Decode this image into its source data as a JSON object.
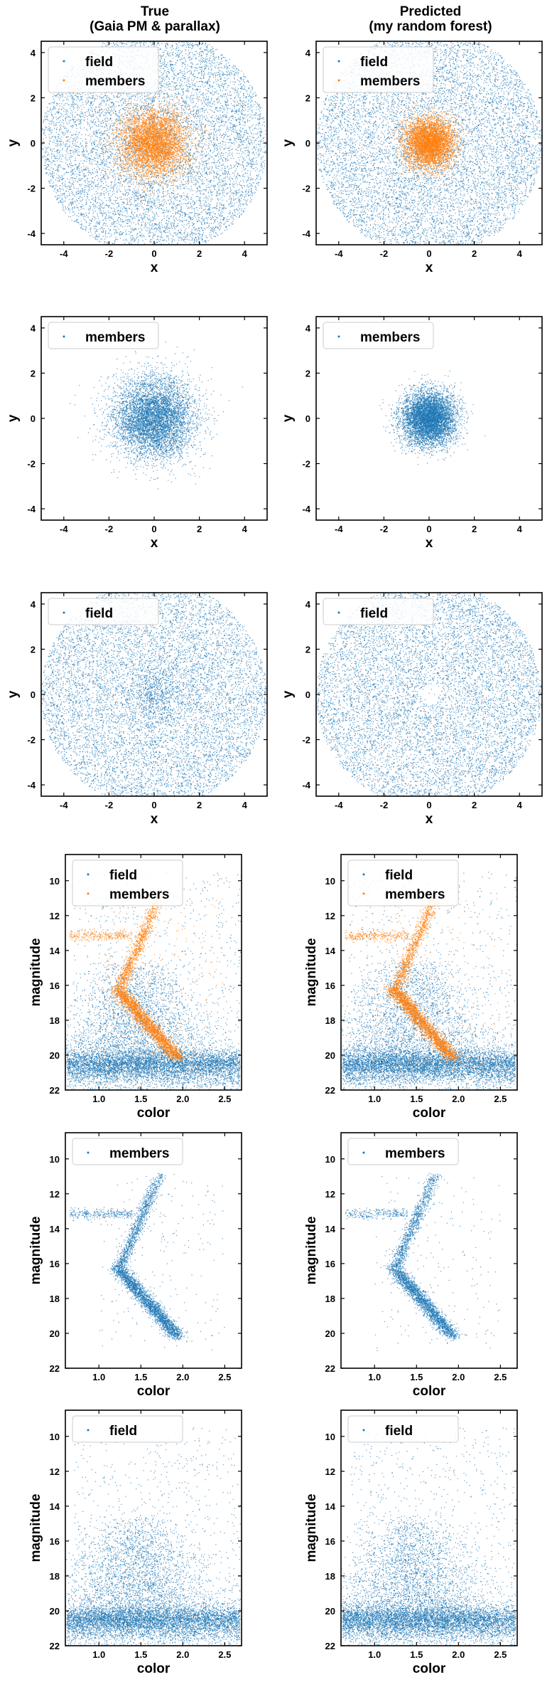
{
  "figure": {
    "column_titles": [
      [
        "True",
        "(Gaia PM & parallax)"
      ],
      [
        "Predicted",
        "(my random forest)"
      ]
    ]
  },
  "colors": {
    "field": "#1f77b4",
    "members": "#ff7f0e"
  },
  "chart_data": [
    {
      "id": "r1c1",
      "type": "scatter",
      "xlabel": "x",
      "ylabel": "y",
      "xlim": [
        -5,
        5
      ],
      "ylim": [
        -4.5,
        4.5
      ],
      "xticks": [
        -4,
        -2,
        0,
        2,
        4
      ],
      "yticks": [
        -4,
        -2,
        0,
        2,
        4
      ],
      "legend": {
        "position": "upper-left",
        "entries": [
          "field",
          "members"
        ]
      },
      "series": [
        {
          "name": "field",
          "color": "#1f77b4",
          "distribution": "uniform-disk",
          "center": [
            0,
            0
          ],
          "radius": 5.0,
          "count": 9000
        },
        {
          "name": "members",
          "color": "#ff7f0e",
          "distribution": "gaussian",
          "center": [
            0,
            0
          ],
          "sigma": 0.75,
          "count": 5000
        }
      ]
    },
    {
      "id": "r1c2",
      "type": "scatter",
      "xlabel": "x",
      "ylabel": "y",
      "xlim": [
        -5,
        5
      ],
      "ylim": [
        -4.5,
        4.5
      ],
      "xticks": [
        -4,
        -2,
        0,
        2,
        4
      ],
      "yticks": [
        -4,
        -2,
        0,
        2,
        4
      ],
      "legend": {
        "position": "upper-left",
        "entries": [
          "field",
          "members"
        ]
      },
      "series": [
        {
          "name": "field",
          "color": "#1f77b4",
          "distribution": "uniform-disk",
          "center": [
            0,
            0
          ],
          "radius": 5.0,
          "count": 9000
        },
        {
          "name": "members",
          "color": "#ff7f0e",
          "distribution": "gaussian",
          "center": [
            0,
            0
          ],
          "sigma": 0.55,
          "count": 5000
        }
      ]
    },
    {
      "id": "r2c1",
      "type": "scatter",
      "xlabel": "x",
      "ylabel": "y",
      "xlim": [
        -5,
        5
      ],
      "ylim": [
        -4.5,
        4.5
      ],
      "xticks": [
        -4,
        -2,
        0,
        2,
        4
      ],
      "yticks": [
        -4,
        -2,
        0,
        2,
        4
      ],
      "legend": {
        "position": "upper-left",
        "entries": [
          "members"
        ]
      },
      "series": [
        {
          "name": "members",
          "color": "#1f77b4",
          "distribution": "gaussian",
          "center": [
            0,
            0
          ],
          "sigma": 0.9,
          "count": 6000
        }
      ]
    },
    {
      "id": "r2c2",
      "type": "scatter",
      "xlabel": "x",
      "ylabel": "y",
      "xlim": [
        -5,
        5
      ],
      "ylim": [
        -4.5,
        4.5
      ],
      "xticks": [
        -4,
        -2,
        0,
        2,
        4
      ],
      "yticks": [
        -4,
        -2,
        0,
        2,
        4
      ],
      "legend": {
        "position": "upper-left",
        "entries": [
          "members"
        ]
      },
      "series": [
        {
          "name": "members",
          "color": "#1f77b4",
          "distribution": "gaussian",
          "center": [
            0,
            0
          ],
          "sigma": 0.6,
          "count": 6000
        }
      ]
    },
    {
      "id": "r3c1",
      "type": "scatter",
      "xlabel": "x",
      "ylabel": "y",
      "xlim": [
        -5,
        5
      ],
      "ylim": [
        -4.5,
        4.5
      ],
      "xticks": [
        -4,
        -2,
        0,
        2,
        4
      ],
      "yticks": [
        -4,
        -2,
        0,
        2,
        4
      ],
      "legend": {
        "position": "upper-left",
        "entries": [
          "field"
        ]
      },
      "series": [
        {
          "name": "field",
          "color": "#1f77b4",
          "distribution": "uniform-disk",
          "center": [
            0,
            0
          ],
          "radius": 5.0,
          "count": 9000
        },
        {
          "name": "field",
          "color": "#1f77b4",
          "distribution": "gaussian",
          "center": [
            0,
            0
          ],
          "sigma": 0.6,
          "count": 500
        }
      ]
    },
    {
      "id": "r3c2",
      "type": "scatter",
      "xlabel": "x",
      "ylabel": "y",
      "xlim": [
        -5,
        5
      ],
      "ylim": [
        -4.5,
        4.5
      ],
      "xticks": [
        -4,
        -2,
        0,
        2,
        4
      ],
      "yticks": [
        -4,
        -2,
        0,
        2,
        4
      ],
      "legend": {
        "position": "upper-left",
        "entries": [
          "field"
        ]
      },
      "series": [
        {
          "name": "field",
          "color": "#1f77b4",
          "distribution": "uniform-disk-with-hole",
          "center": [
            0,
            0
          ],
          "radius": 5.0,
          "hole_radius": 0.45,
          "count": 9000
        }
      ]
    },
    {
      "id": "r4c1",
      "type": "scatter",
      "xlabel": "color",
      "ylabel": "magnitude",
      "xlim": [
        0.6,
        2.7
      ],
      "ylim": [
        22,
        8.5
      ],
      "xticks": [
        1.0,
        1.5,
        2.0,
        2.5
      ],
      "yticks": [
        10,
        12,
        14,
        16,
        18,
        20,
        22
      ],
      "legend": {
        "position": "upper-left",
        "entries": [
          "field",
          "members"
        ]
      },
      "series": [
        {
          "name": "field",
          "color": "#1f77b4",
          "distribution": "cmd-field",
          "count": 9000
        },
        {
          "name": "members",
          "color": "#ff7f0e",
          "distribution": "cmd-cluster",
          "count": 4000
        }
      ]
    },
    {
      "id": "r4c2",
      "type": "scatter",
      "xlabel": "color",
      "ylabel": "magnitude",
      "xlim": [
        0.6,
        2.7
      ],
      "ylim": [
        22,
        8.5
      ],
      "xticks": [
        1.0,
        1.5,
        2.0,
        2.5
      ],
      "yticks": [
        10,
        12,
        14,
        16,
        18,
        20,
        22
      ],
      "legend": {
        "position": "upper-left",
        "entries": [
          "field",
          "members"
        ]
      },
      "series": [
        {
          "name": "field",
          "color": "#1f77b4",
          "distribution": "cmd-field",
          "count": 9000
        },
        {
          "name": "members",
          "color": "#ff7f0e",
          "distribution": "cmd-cluster",
          "count": 4000
        }
      ]
    },
    {
      "id": "r5c1",
      "type": "scatter",
      "xlabel": "color",
      "ylabel": "magnitude",
      "xlim": [
        0.6,
        2.7
      ],
      "ylim": [
        22,
        8.5
      ],
      "xticks": [
        1.0,
        1.5,
        2.0,
        2.5
      ],
      "yticks": [
        10,
        12,
        14,
        16,
        18,
        20,
        22
      ],
      "legend": {
        "position": "upper-left",
        "entries": [
          "members"
        ]
      },
      "series": [
        {
          "name": "members",
          "color": "#1f77b4",
          "distribution": "cmd-cluster",
          "count": 4000
        }
      ]
    },
    {
      "id": "r5c2",
      "type": "scatter",
      "xlabel": "color",
      "ylabel": "magnitude",
      "xlim": [
        0.6,
        2.7
      ],
      "ylim": [
        22,
        8.5
      ],
      "xticks": [
        1.0,
        1.5,
        2.0,
        2.5
      ],
      "yticks": [
        10,
        12,
        14,
        16,
        18,
        20,
        22
      ],
      "legend": {
        "position": "upper-left",
        "entries": [
          "members"
        ]
      },
      "series": [
        {
          "name": "members",
          "color": "#1f77b4",
          "distribution": "cmd-cluster",
          "count": 3600
        }
      ]
    },
    {
      "id": "r6c1",
      "type": "scatter",
      "xlabel": "color",
      "ylabel": "magnitude",
      "xlim": [
        0.6,
        2.7
      ],
      "ylim": [
        22,
        8.5
      ],
      "xticks": [
        1.0,
        1.5,
        2.0,
        2.5
      ],
      "yticks": [
        10,
        12,
        14,
        16,
        18,
        20,
        22
      ],
      "legend": {
        "position": "upper-left",
        "entries": [
          "field"
        ]
      },
      "series": [
        {
          "name": "field",
          "color": "#1f77b4",
          "distribution": "cmd-field",
          "count": 9000
        }
      ]
    },
    {
      "id": "r6c2",
      "type": "scatter",
      "xlabel": "color",
      "ylabel": "magnitude",
      "xlim": [
        0.6,
        2.7
      ],
      "ylim": [
        22,
        8.5
      ],
      "xticks": [
        1.0,
        1.5,
        2.0,
        2.5
      ],
      "yticks": [
        10,
        12,
        14,
        16,
        18,
        20,
        22
      ],
      "legend": {
        "position": "upper-left",
        "entries": [
          "field"
        ]
      },
      "series": [
        {
          "name": "field",
          "color": "#1f77b4",
          "distribution": "cmd-field",
          "count": 9000
        }
      ]
    }
  ]
}
